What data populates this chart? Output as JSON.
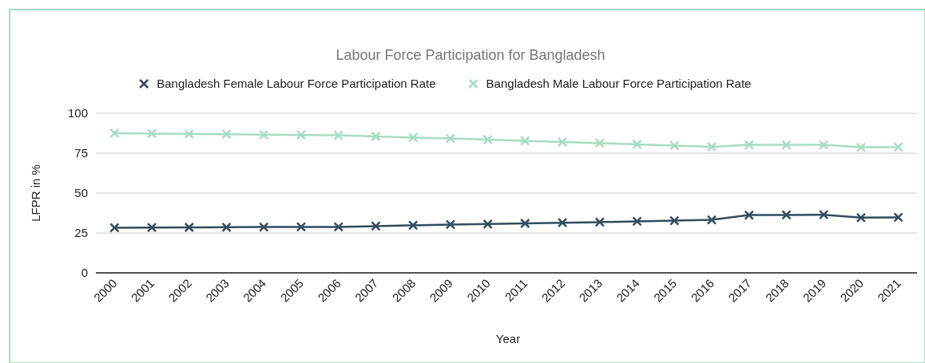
{
  "chart_data": {
    "type": "line",
    "title": "Labour Force Participation for Bangladesh",
    "xlabel": "Year",
    "ylabel": "LFPR in %",
    "categories": [
      "2000",
      "2001",
      "2002",
      "2003",
      "2004",
      "2005",
      "2006",
      "2007",
      "2008",
      "2009",
      "2010",
      "2011",
      "2012",
      "2013",
      "2014",
      "2015",
      "2016",
      "2017",
      "2018",
      "2019",
      "2020",
      "2021"
    ],
    "series": [
      {
        "name": "Bangladesh Female Labour Force Participation Rate",
        "color": "#344c5c",
        "values": [
          28.3,
          28.4,
          28.5,
          28.6,
          28.7,
          28.8,
          28.8,
          29.3,
          29.8,
          30.3,
          30.6,
          31.0,
          31.4,
          31.8,
          32.3,
          32.7,
          33.2,
          36.2,
          36.3,
          36.4,
          34.6,
          34.8
        ]
      },
      {
        "name": "Bangladesh Male Labour Force Participation Rate",
        "color": "#a8dcc4",
        "values": [
          87.5,
          87.3,
          87.1,
          86.9,
          86.6,
          86.4,
          86.2,
          85.5,
          84.8,
          84.2,
          83.5,
          82.7,
          82.0,
          81.3,
          80.5,
          79.8,
          79.0,
          80.2,
          80.2,
          80.2,
          78.7,
          78.8
        ]
      }
    ],
    "ylim": [
      0,
      100
    ],
    "yticks": [
      0,
      25,
      50,
      75,
      100
    ],
    "grid": "y",
    "legend": "top",
    "marker": "cross",
    "line_style": "solid"
  }
}
